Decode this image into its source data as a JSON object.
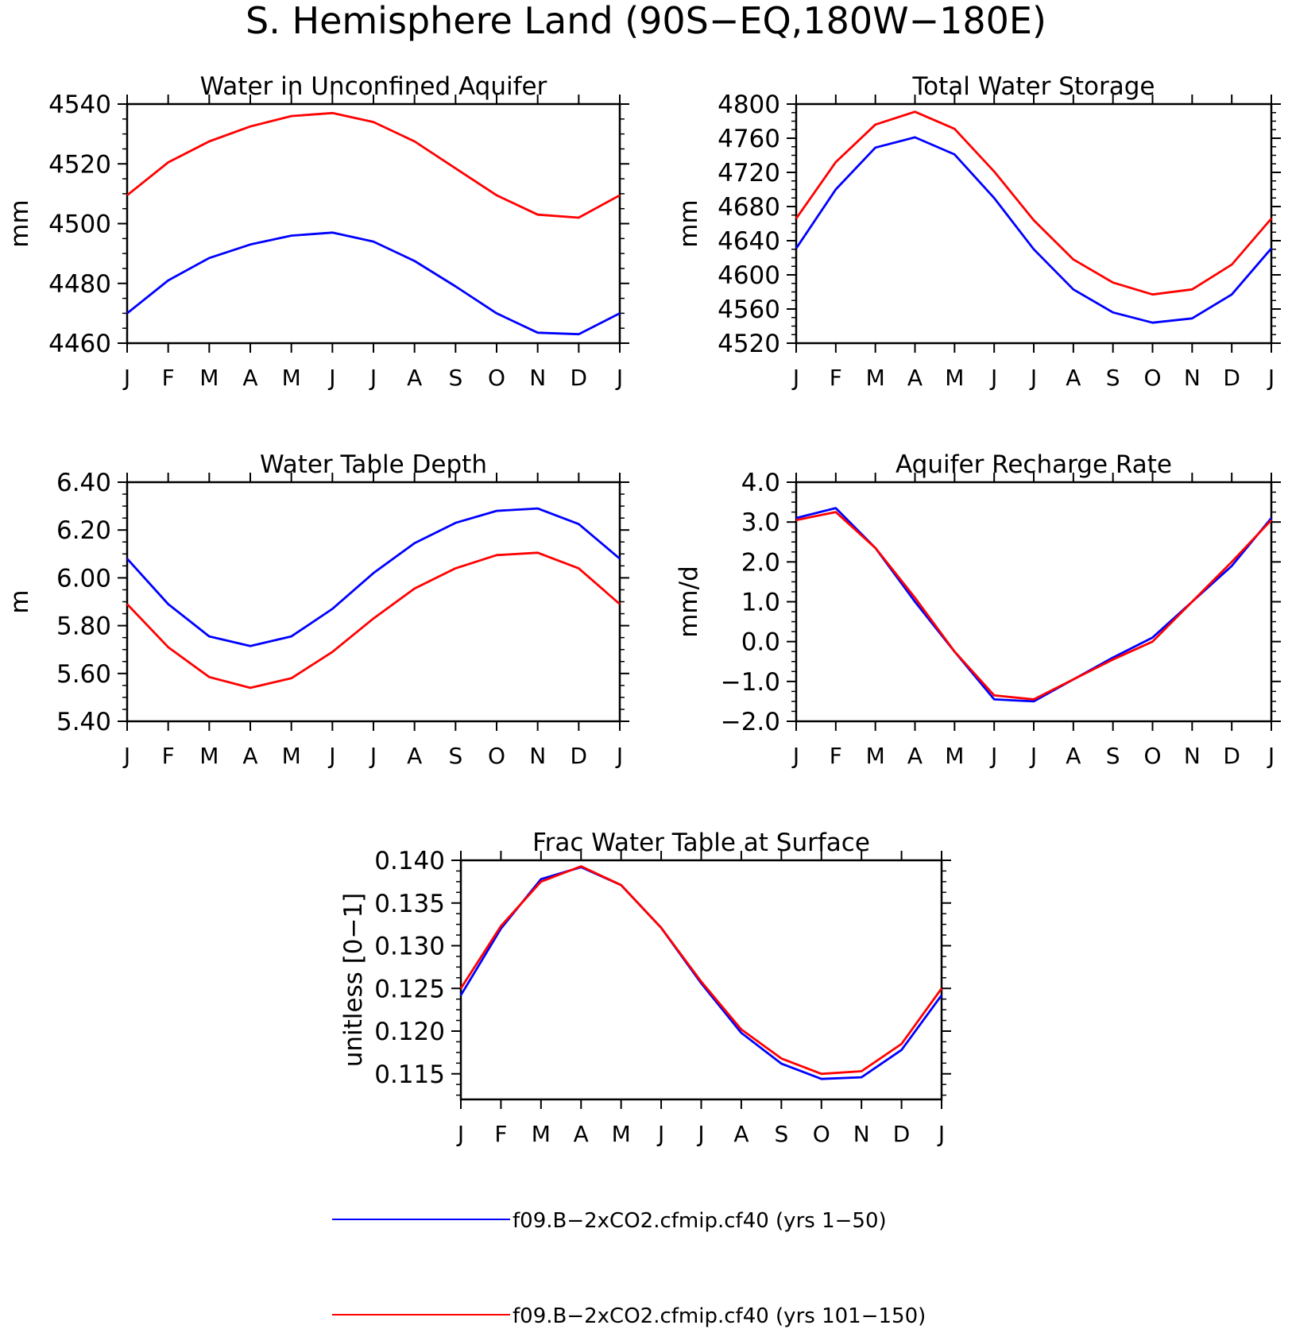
{
  "page_title": "S. Hemisphere Land (90S−EQ,180W−180E)",
  "colors": {
    "series1": "#0000ff",
    "series2": "#ff0000",
    "axis": "#000000"
  },
  "legend": {
    "entries": [
      {
        "label": "f09.B−2xCO2.cfmip.cf40 (yrs 1−50)",
        "color": "#0000ff"
      },
      {
        "label": "f09.B−2xCO2.cfmip.cf40 (yrs 101−150)",
        "color": "#ff0000"
      }
    ]
  },
  "chart_data": [
    {
      "type": "line",
      "title": "Water in Unconfined Aquifer",
      "ylabel": "mm",
      "x": [
        "J",
        "F",
        "M",
        "A",
        "M",
        "J",
        "J",
        "A",
        "S",
        "O",
        "N",
        "D",
        "J"
      ],
      "ylim": [
        4460,
        4540
      ],
      "yticks": [
        4460,
        4480,
        4500,
        4520,
        4540
      ],
      "ytick_labels": [
        "4460",
        "4480",
        "4500",
        "4520",
        "4540"
      ],
      "series": [
        {
          "values": [
            4470,
            4481,
            4488.5,
            4493,
            4496,
            4497,
            4494,
            4487.5,
            4479,
            4470,
            4463.5,
            4463,
            4470
          ]
        },
        {
          "values": [
            4509.5,
            4520.5,
            4527.5,
            4532.5,
            4536,
            4537,
            4534,
            4527.5,
            4518.5,
            4509.5,
            4503,
            4502,
            4509.5
          ]
        }
      ]
    },
    {
      "type": "line",
      "title": "Total Water Storage",
      "ylabel": "mm",
      "x": [
        "J",
        "F",
        "M",
        "A",
        "M",
        "J",
        "J",
        "A",
        "S",
        "O",
        "N",
        "D",
        "J"
      ],
      "ylim": [
        4520,
        4800
      ],
      "yticks": [
        4520,
        4560,
        4600,
        4640,
        4680,
        4720,
        4760,
        4800
      ],
      "ytick_labels": [
        "4520",
        "4560",
        "4600",
        "4640",
        "4680",
        "4720",
        "4760",
        "4800"
      ],
      "series": [
        {
          "values": [
            4631,
            4700,
            4749,
            4761,
            4741,
            4690,
            4630,
            4583,
            4556,
            4544,
            4549,
            4577,
            4631
          ]
        },
        {
          "values": [
            4666,
            4732,
            4776,
            4791,
            4771,
            4721,
            4664,
            4618,
            4591,
            4577,
            4583,
            4612,
            4666
          ]
        }
      ]
    },
    {
      "type": "line",
      "title": "Water Table Depth",
      "ylabel": "m",
      "x": [
        "J",
        "F",
        "M",
        "A",
        "M",
        "J",
        "J",
        "A",
        "S",
        "O",
        "N",
        "D",
        "J"
      ],
      "ylim": [
        5.4,
        6.4
      ],
      "yticks": [
        5.4,
        5.6,
        5.8,
        6.0,
        6.2,
        6.4
      ],
      "ytick_labels": [
        "5.40",
        "5.60",
        "5.80",
        "6.00",
        "6.20",
        "6.40"
      ],
      "series": [
        {
          "values": [
            6.08,
            5.89,
            5.755,
            5.715,
            5.755,
            5.87,
            6.02,
            6.145,
            6.23,
            6.28,
            6.29,
            6.225,
            6.08
          ]
        },
        {
          "values": [
            5.89,
            5.71,
            5.585,
            5.54,
            5.58,
            5.69,
            5.83,
            5.955,
            6.04,
            6.095,
            6.105,
            6.04,
            5.89
          ]
        }
      ]
    },
    {
      "type": "line",
      "title": "Aquifer Recharge Rate",
      "ylabel": "mm/d",
      "x": [
        "J",
        "F",
        "M",
        "A",
        "M",
        "J",
        "J",
        "A",
        "S",
        "O",
        "N",
        "D",
        "J"
      ],
      "ylim": [
        -2,
        4
      ],
      "yticks": [
        -2,
        -1,
        0,
        1,
        2,
        3,
        4
      ],
      "ytick_labels": [
        "−2.0",
        "−1.0",
        "0.0",
        "1.0",
        "2.0",
        "3.0",
        "4.0"
      ],
      "series": [
        {
          "values": [
            3.1,
            3.35,
            2.35,
            1.0,
            -0.25,
            -1.45,
            -1.5,
            -0.95,
            -0.4,
            0.1,
            1.0,
            1.9,
            3.1
          ]
        },
        {
          "values": [
            3.05,
            3.25,
            2.35,
            1.1,
            -0.25,
            -1.35,
            -1.45,
            -0.95,
            -0.45,
            0.0,
            1.0,
            2.0,
            3.05
          ]
        }
      ]
    },
    {
      "type": "line",
      "title": "Frac Water Table at Surface",
      "ylabel": "unitless [0−1]",
      "x": [
        "J",
        "F",
        "M",
        "A",
        "M",
        "J",
        "J",
        "A",
        "S",
        "O",
        "N",
        "D",
        "J"
      ],
      "ylim": [
        0.112,
        0.14
      ],
      "yticks": [
        0.115,
        0.12,
        0.125,
        0.13,
        0.135,
        0.14
      ],
      "ytick_labels": [
        "0.115",
        "0.120",
        "0.125",
        "0.130",
        "0.135",
        "0.140"
      ],
      "series": [
        {
          "values": [
            0.1242,
            0.132,
            0.1378,
            0.1392,
            0.1371,
            0.1321,
            0.1256,
            0.1198,
            0.1162,
            0.1144,
            0.1146,
            0.1178,
            0.1242
          ]
        },
        {
          "values": [
            0.125,
            0.1323,
            0.1375,
            0.1393,
            0.1371,
            0.1321,
            0.1258,
            0.1202,
            0.1168,
            0.115,
            0.1153,
            0.1185,
            0.125
          ]
        }
      ]
    }
  ]
}
